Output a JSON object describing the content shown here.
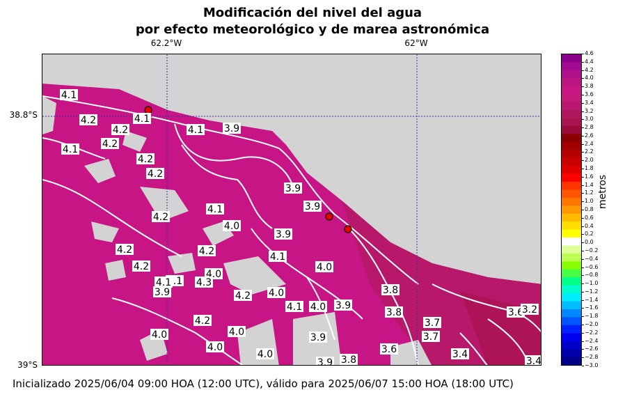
{
  "title": {
    "line1": "Modificación del nivel del agua",
    "line2": "por efecto meteorológico y de marea astronómica"
  },
  "axes": {
    "lon_ticks": [
      "62.2°W",
      "62°W"
    ],
    "lat_ticks": [
      "38.8°S",
      "39°S"
    ]
  },
  "colorbar": {
    "label": "metros",
    "ticks": [
      "4.6",
      "4.4",
      "4.2",
      "4.0",
      "3.8",
      "3.6",
      "3.4",
      "3.2",
      "3.0",
      "2.8",
      "2.6",
      "2.4",
      "2.2",
      "2.0",
      "1.8",
      "1.6",
      "1.4",
      "1.2",
      "1.0",
      "0.8",
      "0.6",
      "0.4",
      "0.2",
      "0.0",
      "−0.2",
      "−0.4",
      "−0.6",
      "−0.8",
      "−1.0",
      "−1.2",
      "−1.4",
      "−1.6",
      "−1.8",
      "−2.0",
      "−2.2",
      "−2.4",
      "−2.6",
      "−2.8",
      "−3.0"
    ],
    "colors": [
      "#8b008b",
      "#a30a8f",
      "#b01088",
      "#bc1480",
      "#c71585",
      "#c41a7a",
      "#bb1670",
      "#b0175f",
      "#a81450",
      "#9a0a3a",
      "#8b0000",
      "#a00000",
      "#b80000",
      "#cc0000",
      "#e00000",
      "#ff0000",
      "#ff3300",
      "#ff5500",
      "#ff7700",
      "#ff9900",
      "#ffbb00",
      "#ffdd00",
      "#ffff00",
      "#ffffff",
      "#ddff99",
      "#bbff55",
      "#88ff00",
      "#44ff44",
      "#00ff88",
      "#00ffcc",
      "#00eeff",
      "#00bbff",
      "#0088ff",
      "#0055ff",
      "#0022ff",
      "#0000ee",
      "#0000cc",
      "#0000aa",
      "#000088"
    ]
  },
  "contour_labels": [
    "4.1",
    "4.1",
    "4.2",
    "4.2",
    "4.1",
    "3.9",
    "4.2",
    "4.1",
    "4.2",
    "4.2",
    "4.2",
    "3.9",
    "3.9",
    "4.1",
    "4.0",
    "3.9",
    "4.0",
    "4.1",
    "4.2",
    "4.2",
    "4.2",
    "4.1",
    "4.0",
    "4.3",
    "4.1",
    "3.9",
    "4.2",
    "4.0",
    "4.1",
    "4.0",
    "3.9",
    "3.9",
    "3.8",
    "3.8",
    "3.7",
    "3.6",
    "3.7",
    "3.6",
    "3.4",
    "3.4",
    "4.0",
    "4.0",
    "4.0",
    "3.9",
    "3.8",
    "3.2",
    "4.0",
    "4.2"
  ],
  "footer": "Inicializado 2025/06/04 09:00 HOA (12:00 UTC), válido para 2025/06/07 15:00 HOA (18:00 UTC)"
}
